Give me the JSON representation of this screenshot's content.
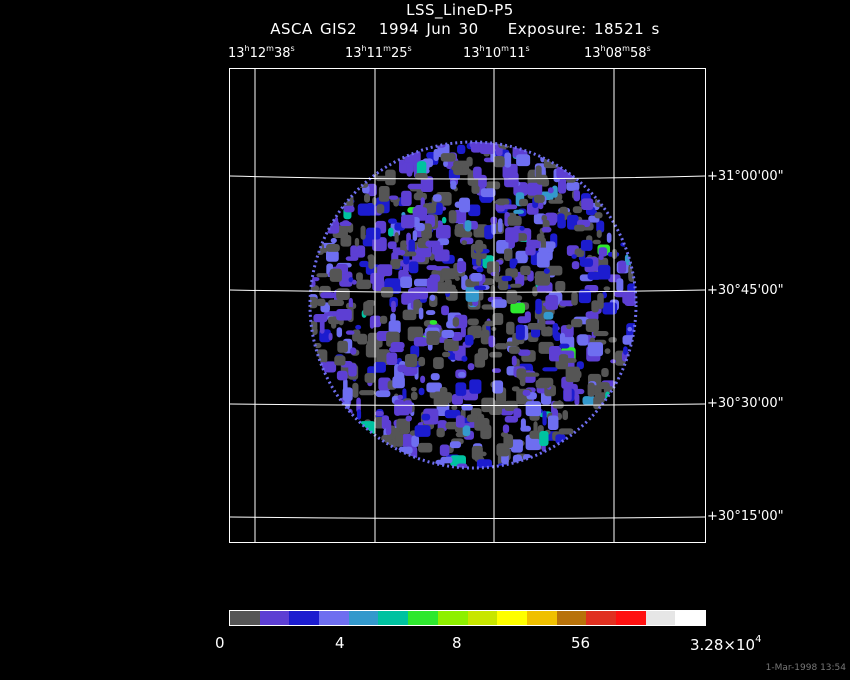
{
  "header": {
    "title": "LSS_LineD-P5",
    "subtitle": "ASCA GIS2   1994 Jun 30    Exposure: 18521 s"
  },
  "ra_labels": [
    {
      "h": "13",
      "hu": "h",
      "m": "12",
      "mu": "m",
      "s": "38",
      "su": "s"
    },
    {
      "h": "13",
      "hu": "h",
      "m": "11",
      "mu": "m",
      "s": "25",
      "su": "s"
    },
    {
      "h": "13",
      "hu": "h",
      "m": "10",
      "mu": "m",
      "s": "11",
      "su": "s"
    },
    {
      "h": "13",
      "hu": "h",
      "m": "08",
      "mu": "m",
      "s": "58",
      "su": "s"
    }
  ],
  "dec_labels": [
    "+31°00'00\"",
    "+30°45'00\"",
    "+30°30'00\"",
    "+30°15'00\""
  ],
  "colorbar": {
    "colors": [
      "#555555",
      "#5d3fd3",
      "#1c1ccf",
      "#6e6ef0",
      "#3399cc",
      "#00c2a0",
      "#2ee82e",
      "#8ef000",
      "#c8e600",
      "#ffff00",
      "#f0c000",
      "#b8720a",
      "#e03020",
      "#ff1010",
      "#e6e6e6",
      "#ffffff"
    ],
    "labels": [
      "0",
      "4",
      "8",
      "56"
    ],
    "max_label_base": "3.28×10",
    "max_label_exp": "4"
  },
  "timestamp": "1-Mar-1998 13:54"
}
